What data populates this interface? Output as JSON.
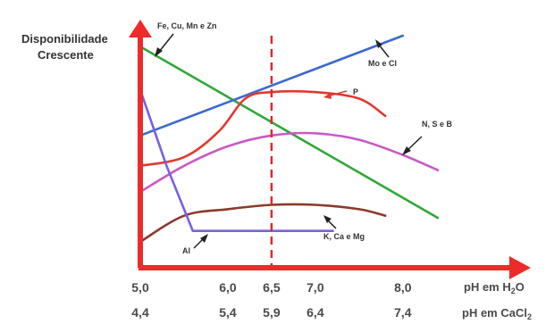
{
  "chart_data": {
    "type": "line",
    "title": "",
    "ylabel": "Disponibilidade Crescente",
    "xlabel_h2o": "pH em H",
    "xlabel_h2o_sub": "2",
    "xlabel_h2o_end": "O",
    "xlabel_cacl": "pH em CaCl",
    "xlabel_cacl_sub": "2",
    "xlim": [
      5.0,
      8.4
    ],
    "ylim": [
      0,
      100
    ],
    "ph_marker": 6.5,
    "ticks_h2o": [
      {
        "x": 5.0,
        "label": "5,0"
      },
      {
        "x": 6.0,
        "label": "6,0"
      },
      {
        "x": 6.5,
        "label": "6,5"
      },
      {
        "x": 7.0,
        "label": "7,0"
      },
      {
        "x": 8.0,
        "label": "8,0"
      }
    ],
    "ticks_cacl": [
      {
        "x": 5.0,
        "label": "4,4"
      },
      {
        "x": 6.0,
        "label": "5,4"
      },
      {
        "x": 6.5,
        "label": "5,9"
      },
      {
        "x": 7.0,
        "label": "6,4"
      },
      {
        "x": 8.0,
        "label": "7,4"
      }
    ],
    "series": [
      {
        "name": "Fe, Cu, Mn e Zn",
        "color": "#2fa838",
        "x": [
          5.0,
          8.4
        ],
        "y": [
          95,
          16
        ]
      },
      {
        "name": "Mo e Cl",
        "color": "#3a6ad0",
        "x": [
          5.0,
          8.0
        ],
        "y": [
          54,
          100
        ]
      },
      {
        "name": "P",
        "color": "#e03a30",
        "x": [
          5.0,
          5.5,
          5.9,
          6.2,
          6.5,
          7.0,
          7.5,
          7.8
        ],
        "y": [
          40,
          44,
          56,
          71,
          74,
          74,
          71,
          63
        ]
      },
      {
        "name": "N, S e B",
        "color": "#c85ac8",
        "x": [
          5.0,
          5.5,
          6.0,
          6.5,
          7.0,
          7.5,
          8.0,
          8.4
        ],
        "y": [
          28,
          40,
          49,
          54,
          55,
          52,
          45,
          38
        ]
      },
      {
        "name": "K, Ca e Mg",
        "color": "#8b3a2a",
        "x": [
          5.0,
          5.5,
          6.0,
          6.5,
          7.0,
          7.5,
          7.8
        ],
        "y": [
          5,
          17,
          20,
          22,
          22,
          20,
          17
        ]
      },
      {
        "name": "Al",
        "color": "#7b5fe0",
        "x": [
          5.0,
          5.3,
          5.6,
          6.0,
          6.5,
          7.0,
          7.2
        ],
        "y": [
          75,
          40,
          10,
          10,
          10,
          10,
          10
        ]
      }
    ],
    "annotations": [
      {
        "text": "Fe, Cu, Mn e Zn",
        "color": "#ffffff"
      },
      {
        "text": "Mo e Cl"
      },
      {
        "text": "P"
      },
      {
        "text": "N, S e B"
      },
      {
        "text": "K, Ca e Mg"
      },
      {
        "text": "Al"
      }
    ]
  }
}
